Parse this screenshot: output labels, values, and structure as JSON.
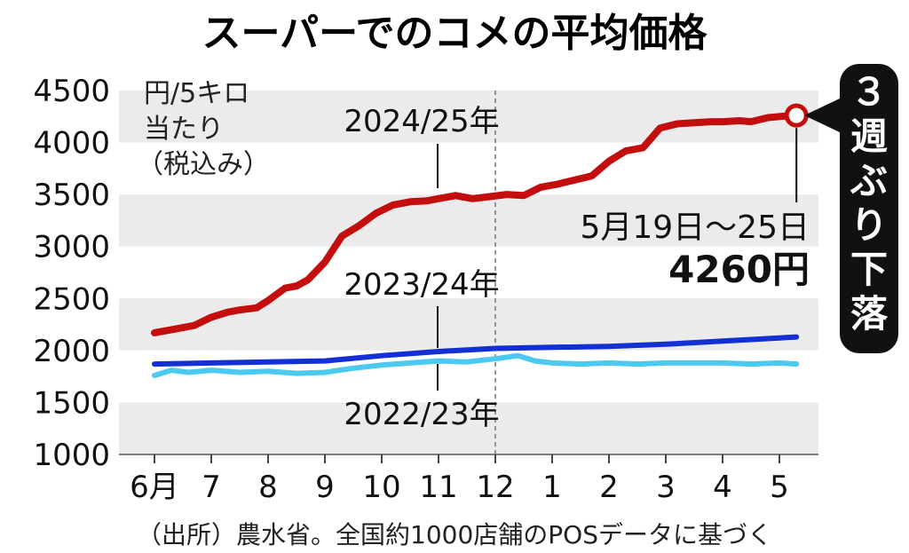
{
  "chart_data": {
    "type": "line",
    "title": "スーパーでのコメの平均価格",
    "ylabel_lines": [
      "円/5キロ",
      "当たり",
      "（税込み）"
    ],
    "ylim": [
      1000,
      4500
    ],
    "yticks": [
      1000,
      1500,
      2000,
      2500,
      3000,
      3500,
      4000,
      4500
    ],
    "months": [
      "6月",
      "7",
      "8",
      "9",
      "10",
      "11",
      "12",
      "1",
      "2",
      "3",
      "4",
      "5"
    ],
    "grid": "alternating horizontal bands",
    "series": [
      {
        "name": "2024/25年",
        "color": "#c40d0d",
        "x": [
          0.0,
          0.3,
          0.7,
          1.0,
          1.3,
          1.5,
          1.8,
          2.0,
          2.3,
          2.5,
          2.7,
          3.0,
          3.3,
          3.6,
          3.9,
          4.2,
          4.5,
          4.8,
          5.0,
          5.3,
          5.6,
          5.9,
          6.2,
          6.5,
          6.8,
          7.1,
          7.4,
          7.7,
          8.0,
          8.3,
          8.6,
          8.9,
          9.2,
          9.5,
          9.8,
          10.0,
          10.3,
          10.5,
          10.8,
          11.0,
          11.3
        ],
        "values": [
          2170,
          2200,
          2240,
          2320,
          2370,
          2390,
          2410,
          2480,
          2600,
          2620,
          2680,
          2850,
          3100,
          3200,
          3320,
          3400,
          3430,
          3440,
          3460,
          3490,
          3460,
          3480,
          3500,
          3490,
          3570,
          3600,
          3640,
          3680,
          3820,
          3920,
          3950,
          4140,
          4180,
          4190,
          4200,
          4200,
          4210,
          4200,
          4240,
          4250,
          4260
        ]
      },
      {
        "name": "2023/24年",
        "color": "#1330d4",
        "x": [
          0,
          1,
          2,
          3,
          4,
          5,
          6,
          7,
          8,
          9,
          10,
          11,
          11.3
        ],
        "values": [
          1870,
          1880,
          1890,
          1900,
          1950,
          1990,
          2020,
          2030,
          2040,
          2060,
          2090,
          2120,
          2130
        ]
      },
      {
        "name": "2022/23年",
        "color": "#4cc9f0",
        "x": [
          0,
          0.3,
          0.6,
          1,
          1.5,
          2,
          2.5,
          3,
          3.5,
          4,
          4.5,
          5,
          5.5,
          6,
          6.4,
          6.7,
          7,
          7.5,
          8,
          8.5,
          9,
          9.5,
          10,
          10.5,
          11,
          11.3
        ],
        "values": [
          1760,
          1810,
          1790,
          1810,
          1790,
          1800,
          1780,
          1790,
          1830,
          1860,
          1880,
          1900,
          1890,
          1920,
          1950,
          1900,
          1880,
          1870,
          1880,
          1870,
          1880,
          1880,
          1880,
          1870,
          1880,
          1870
        ]
      }
    ],
    "year_boundary_after": "12",
    "annotation": {
      "date": "5月19日～25日",
      "value_label": "4260円",
      "callout": "３週ぶり下落"
    },
    "source": "（出所）農水省。全国約1000店舗のPOSデータに基づく"
  }
}
